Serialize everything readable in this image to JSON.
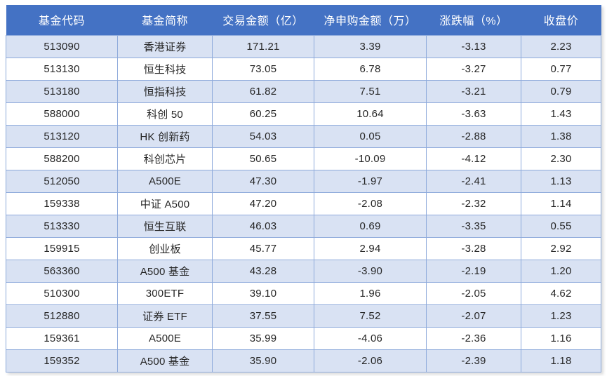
{
  "table": {
    "columns": [
      "基金代码",
      "基金简称",
      "交易金额（亿）",
      "净申购金额（万）",
      "涨跌幅（%）",
      "收盘价"
    ],
    "column_keys": [
      "fund-code",
      "fund-name",
      "trade-amount",
      "net-subscription",
      "change-pct",
      "close-price"
    ],
    "rows": [
      [
        "513090",
        "香港证券",
        "171.21",
        "3.39",
        "-3.13",
        "2.23"
      ],
      [
        "513130",
        "恒生科技",
        "73.05",
        "6.78",
        "-3.27",
        "0.77"
      ],
      [
        "513180",
        "恒指科技",
        "61.82",
        "7.51",
        "-3.21",
        "0.79"
      ],
      [
        "588000",
        "科创 50",
        "60.25",
        "10.64",
        "-3.63",
        "1.43"
      ],
      [
        "513120",
        "HK 创新药",
        "54.03",
        "0.05",
        "-2.88",
        "1.38"
      ],
      [
        "588200",
        "科创芯片",
        "50.65",
        "-10.09",
        "-4.12",
        "2.30"
      ],
      [
        "512050",
        "A500E",
        "47.30",
        "-1.97",
        "-2.41",
        "1.13"
      ],
      [
        "159338",
        "中证 A500",
        "47.20",
        "-2.08",
        "-2.32",
        "1.14"
      ],
      [
        "513330",
        "恒生互联",
        "46.03",
        "0.69",
        "-3.35",
        "0.55"
      ],
      [
        "159915",
        "创业板",
        "45.77",
        "2.94",
        "-3.28",
        "2.92"
      ],
      [
        "563360",
        "A500 基金",
        "43.28",
        "-3.90",
        "-2.19",
        "1.20"
      ],
      [
        "510300",
        "300ETF",
        "39.10",
        "1.96",
        "-2.05",
        "4.62"
      ],
      [
        "512880",
        "证券 ETF",
        "37.55",
        "7.52",
        "-2.07",
        "1.23"
      ],
      [
        "159361",
        "A500E",
        "35.99",
        "-4.06",
        "-2.36",
        "1.16"
      ],
      [
        "159352",
        "A500 基金",
        "35.90",
        "-2.06",
        "-2.39",
        "1.18"
      ]
    ]
  },
  "colors": {
    "header_bg": "#4472C4",
    "header_text": "#FFFFFF",
    "band_row_bg": "#D9E2F3",
    "white_row_bg": "#FFFFFF",
    "border": "#8EAADB",
    "body_text": "#262626"
  }
}
